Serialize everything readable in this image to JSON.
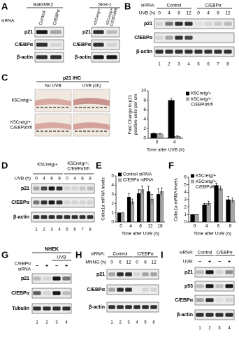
{
  "panels": {
    "A": {
      "letter": "A",
      "groups": [
        "Balb/MK2",
        "SKH-1"
      ],
      "sirna_label": "siRNA:",
      "lanes_left": [
        "Control",
        "C/EBPα"
      ],
      "lanes_right": [
        "K5Cretg/+",
        "K5Cretg/+; C/EBPαfl/fl"
      ],
      "rows_left": [
        "p21",
        "C/EBPα",
        "β-actin"
      ],
      "rows_right": [
        "p21",
        "C/EBPα",
        "β-actin"
      ]
    },
    "B": {
      "letter": "B",
      "sirna_label": "siRNA:",
      "groups": [
        "Control",
        "C/EBPα"
      ],
      "uvb_label": "UVB (h)",
      "times": [
        "0",
        "4",
        "8",
        "12",
        "0",
        "4",
        "8",
        "12"
      ],
      "rows": [
        "p21",
        "C/EBPα",
        "β-actin"
      ],
      "lane_numbers": [
        "1",
        "2",
        "3",
        "4",
        "5",
        "6",
        "7",
        "8"
      ]
    },
    "C": {
      "letter": "C",
      "title": "p21 IHC",
      "conditions": [
        "No UVB",
        "UVB (4h)"
      ],
      "rows": [
        "K5Cretg/+",
        "K5Cretg/+; C/EBPαfl/fl"
      ]
    },
    "D": {
      "letter": "D",
      "groups": [
        "K5Cretg/+",
        "K5Cretg/+; C/EBPαfl/fl"
      ],
      "uvb_label": "UVB (h)",
      "times": [
        "0",
        "4",
        "6",
        "8",
        "0",
        "4",
        "6",
        "8"
      ],
      "rows": [
        "p21",
        "C/EBPα",
        "β-actin"
      ],
      "lane_numbers": [
        "1",
        "2",
        "3",
        "4",
        "5",
        "6",
        "7",
        "8"
      ]
    },
    "E": {
      "letter": "E"
    },
    "F": {
      "letter": "F"
    },
    "G": {
      "letter": "G",
      "title": "NHEK",
      "treatment": "C/EBPα",
      "treatment_suffix": "siRNA",
      "uvb_label": "UVB",
      "signs": [
        "−",
        "+",
        "−",
        "+"
      ],
      "rows": [
        "p21",
        "C/EBPα",
        "Tubulin"
      ],
      "lane_numbers": [
        "1",
        "2",
        "3",
        "4"
      ]
    },
    "H": {
      "letter": "H",
      "sirna_label": "siRNA:",
      "groups": [
        "Control",
        "C/EBPα"
      ],
      "treatment_label": "MNNG (h)",
      "times": [
        "0",
        "6",
        "12",
        "0",
        "6",
        "12"
      ],
      "rows": [
        "p21",
        "C/EBPα",
        "β-actin"
      ],
      "lane_numbers": [
        "1",
        "2",
        "3",
        "4",
        "5",
        "6"
      ]
    },
    "I": {
      "letter": "I",
      "sirna_label": "siRNA:",
      "groups": [
        "Control",
        "C/EBPα"
      ],
      "uvb_label": "UVB:",
      "signs": [
        "−",
        "+",
        "−",
        "+"
      ],
      "rows": [
        "p21",
        "p53",
        "C/EBPα",
        "β-actin"
      ],
      "lane_numbers": [
        "1",
        "2",
        "3",
        "4"
      ]
    }
  },
  "chart_data": [
    {
      "type": "bar",
      "ylabel": "Fold Change in p21 positive cells per cm",
      "xlabel": "Time after UVB (h)",
      "categories": [
        "0",
        "4"
      ],
      "ylim": [
        0,
        10
      ],
      "yticks": [
        0,
        2,
        4,
        6,
        8,
        10
      ],
      "legend": "right",
      "series": [
        {
          "name": "K5Cretg/+",
          "color": "#000000",
          "values": [
            1,
            8
          ],
          "errors": [
            0.1,
            0.4
          ]
        },
        {
          "name": "K5Cretg/+; C/EBPαfl/fl",
          "color": "#a6a6a6",
          "values": [
            0.9,
            0.4
          ],
          "errors": [
            0.1,
            0.1
          ]
        }
      ]
    },
    {
      "type": "bar",
      "ylabel": "Cdkn1a mRNA levels",
      "xlabel": "Time after UVB (h)",
      "categories": [
        "0",
        "4",
        "8",
        "12",
        "18"
      ],
      "ylim": [
        0,
        5
      ],
      "yticks": [
        0,
        1,
        2,
        3,
        4,
        5
      ],
      "legend": "upper left",
      "series": [
        {
          "name": "Control siRNA",
          "color": "#000000",
          "values": [
            1,
            2.7,
            3.1,
            3.3,
            3.0
          ],
          "errors": [
            0,
            0.4,
            0.4,
            0.6,
            0.6
          ]
        },
        {
          "name": "C/EBPα siRNA",
          "color": "#a6a6a6",
          "values": [
            1,
            2.2,
            3.5,
            2.5,
            3.3
          ],
          "errors": [
            0,
            0.3,
            0.4,
            0.5,
            0.4
          ]
        }
      ]
    },
    {
      "type": "bar",
      "ylabel": "Cdkn1a mRNA levels",
      "xlabel": "Time after UVB (h)",
      "categories": [
        "0",
        "4",
        "6",
        "8"
      ],
      "ylim": [
        0,
        6
      ],
      "yticks": [
        0,
        1,
        2,
        3,
        4,
        5,
        6
      ],
      "legend": "upper left",
      "series": [
        {
          "name": "K5Cretg/+",
          "color": "#000000",
          "values": [
            1,
            2.3,
            4.9,
            3.0
          ],
          "errors": [
            0,
            0.2,
            0.3,
            0.4
          ]
        },
        {
          "name": "K5Cretg/+; C/EBPαfl/fl",
          "color": "#a6a6a6",
          "values": [
            1,
            2.5,
            4.5,
            2.9
          ],
          "errors": [
            0,
            0.3,
            0.3,
            0.3
          ]
        }
      ]
    }
  ]
}
